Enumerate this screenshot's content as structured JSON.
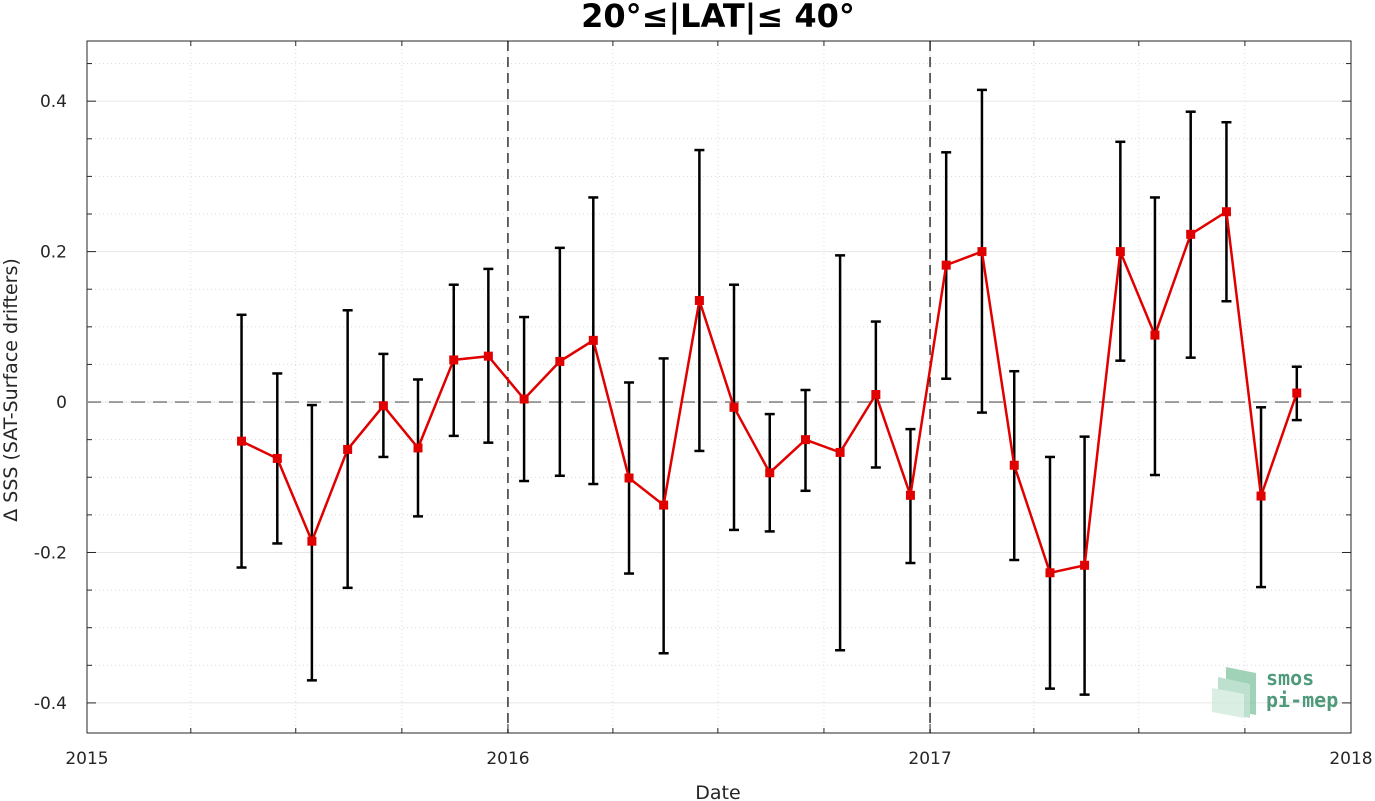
{
  "chart_data": {
    "type": "line",
    "title": "20°≤|LAT|≤ 40°",
    "xlabel": "Date",
    "ylabel": "Δ SSS (SAT-Surface drifters)",
    "xlim": [
      "2015-01-01",
      "2018-01-01"
    ],
    "ylim": [
      -0.44,
      0.48
    ],
    "x_ticks": [
      "2015",
      "2016",
      "2017",
      "2018"
    ],
    "y_ticks": [
      -0.4,
      -0.2,
      0,
      0.2,
      0.4
    ],
    "y_tick_labels": [
      "-0.4",
      "-0.2",
      "0",
      "0.2",
      "0.4"
    ],
    "grid": true,
    "year_dividers": [
      "2016-01-01",
      "2017-01-01"
    ],
    "zero_line": 0,
    "series": [
      {
        "color": "#e00000",
        "marker": "square",
        "errorbar_color": "#000000",
        "points": [
          {
            "x": "2015-05-15",
            "y": -0.052,
            "lo": -0.22,
            "hi": 0.116
          },
          {
            "x": "2015-06-15",
            "y": -0.075,
            "lo": -0.188,
            "hi": 0.038
          },
          {
            "x": "2015-07-15",
            "y": -0.185,
            "lo": -0.37,
            "hi": -0.004
          },
          {
            "x": "2015-08-15",
            "y": -0.063,
            "lo": -0.247,
            "hi": 0.122
          },
          {
            "x": "2015-09-15",
            "y": -0.005,
            "lo": -0.073,
            "hi": 0.064
          },
          {
            "x": "2015-10-15",
            "y": -0.061,
            "lo": -0.152,
            "hi": 0.03
          },
          {
            "x": "2015-11-15",
            "y": 0.056,
            "lo": -0.045,
            "hi": 0.156
          },
          {
            "x": "2015-12-15",
            "y": 0.061,
            "lo": -0.054,
            "hi": 0.177
          },
          {
            "x": "2016-01-15",
            "y": 0.004,
            "lo": -0.105,
            "hi": 0.113
          },
          {
            "x": "2016-02-15",
            "y": 0.054,
            "lo": -0.098,
            "hi": 0.205
          },
          {
            "x": "2016-03-15",
            "y": 0.082,
            "lo": -0.109,
            "hi": 0.272
          },
          {
            "x": "2016-04-15",
            "y": -0.101,
            "lo": -0.228,
            "hi": 0.026
          },
          {
            "x": "2016-05-15",
            "y": -0.137,
            "lo": -0.334,
            "hi": 0.058
          },
          {
            "x": "2016-06-15",
            "y": 0.135,
            "lo": -0.065,
            "hi": 0.335
          },
          {
            "x": "2016-07-15",
            "y": -0.007,
            "lo": -0.17,
            "hi": 0.156
          },
          {
            "x": "2016-08-15",
            "y": -0.094,
            "lo": -0.172,
            "hi": -0.016
          },
          {
            "x": "2016-09-15",
            "y": -0.05,
            "lo": -0.118,
            "hi": 0.016
          },
          {
            "x": "2016-10-15",
            "y": -0.067,
            "lo": -0.33,
            "hi": 0.195
          },
          {
            "x": "2016-11-15",
            "y": 0.01,
            "lo": -0.087,
            "hi": 0.107
          },
          {
            "x": "2016-12-15",
            "y": -0.124,
            "lo": -0.214,
            "hi": -0.036
          },
          {
            "x": "2017-01-15",
            "y": 0.182,
            "lo": 0.031,
            "hi": 0.332
          },
          {
            "x": "2017-02-15",
            "y": 0.2,
            "lo": -0.014,
            "hi": 0.415
          },
          {
            "x": "2017-03-15",
            "y": -0.084,
            "lo": -0.21,
            "hi": 0.041
          },
          {
            "x": "2017-04-15",
            "y": -0.227,
            "lo": -0.381,
            "hi": -0.073
          },
          {
            "x": "2017-05-15",
            "y": -0.217,
            "lo": -0.389,
            "hi": -0.046
          },
          {
            "x": "2017-06-15",
            "y": 0.2,
            "lo": 0.055,
            "hi": 0.346
          },
          {
            "x": "2017-07-15",
            "y": 0.089,
            "lo": -0.097,
            "hi": 0.272
          },
          {
            "x": "2017-08-15",
            "y": 0.223,
            "lo": 0.059,
            "hi": 0.386
          },
          {
            "x": "2017-09-15",
            "y": 0.253,
            "lo": 0.134,
            "hi": 0.372
          },
          {
            "x": "2017-10-15",
            "y": -0.125,
            "lo": -0.246,
            "hi": -0.007
          },
          {
            "x": "2017-11-15",
            "y": 0.012,
            "lo": -0.024,
            "hi": 0.047
          }
        ]
      }
    ]
  },
  "logo": {
    "line1": "smos",
    "line2": "pi-mep",
    "color": "#4f9a7a"
  }
}
